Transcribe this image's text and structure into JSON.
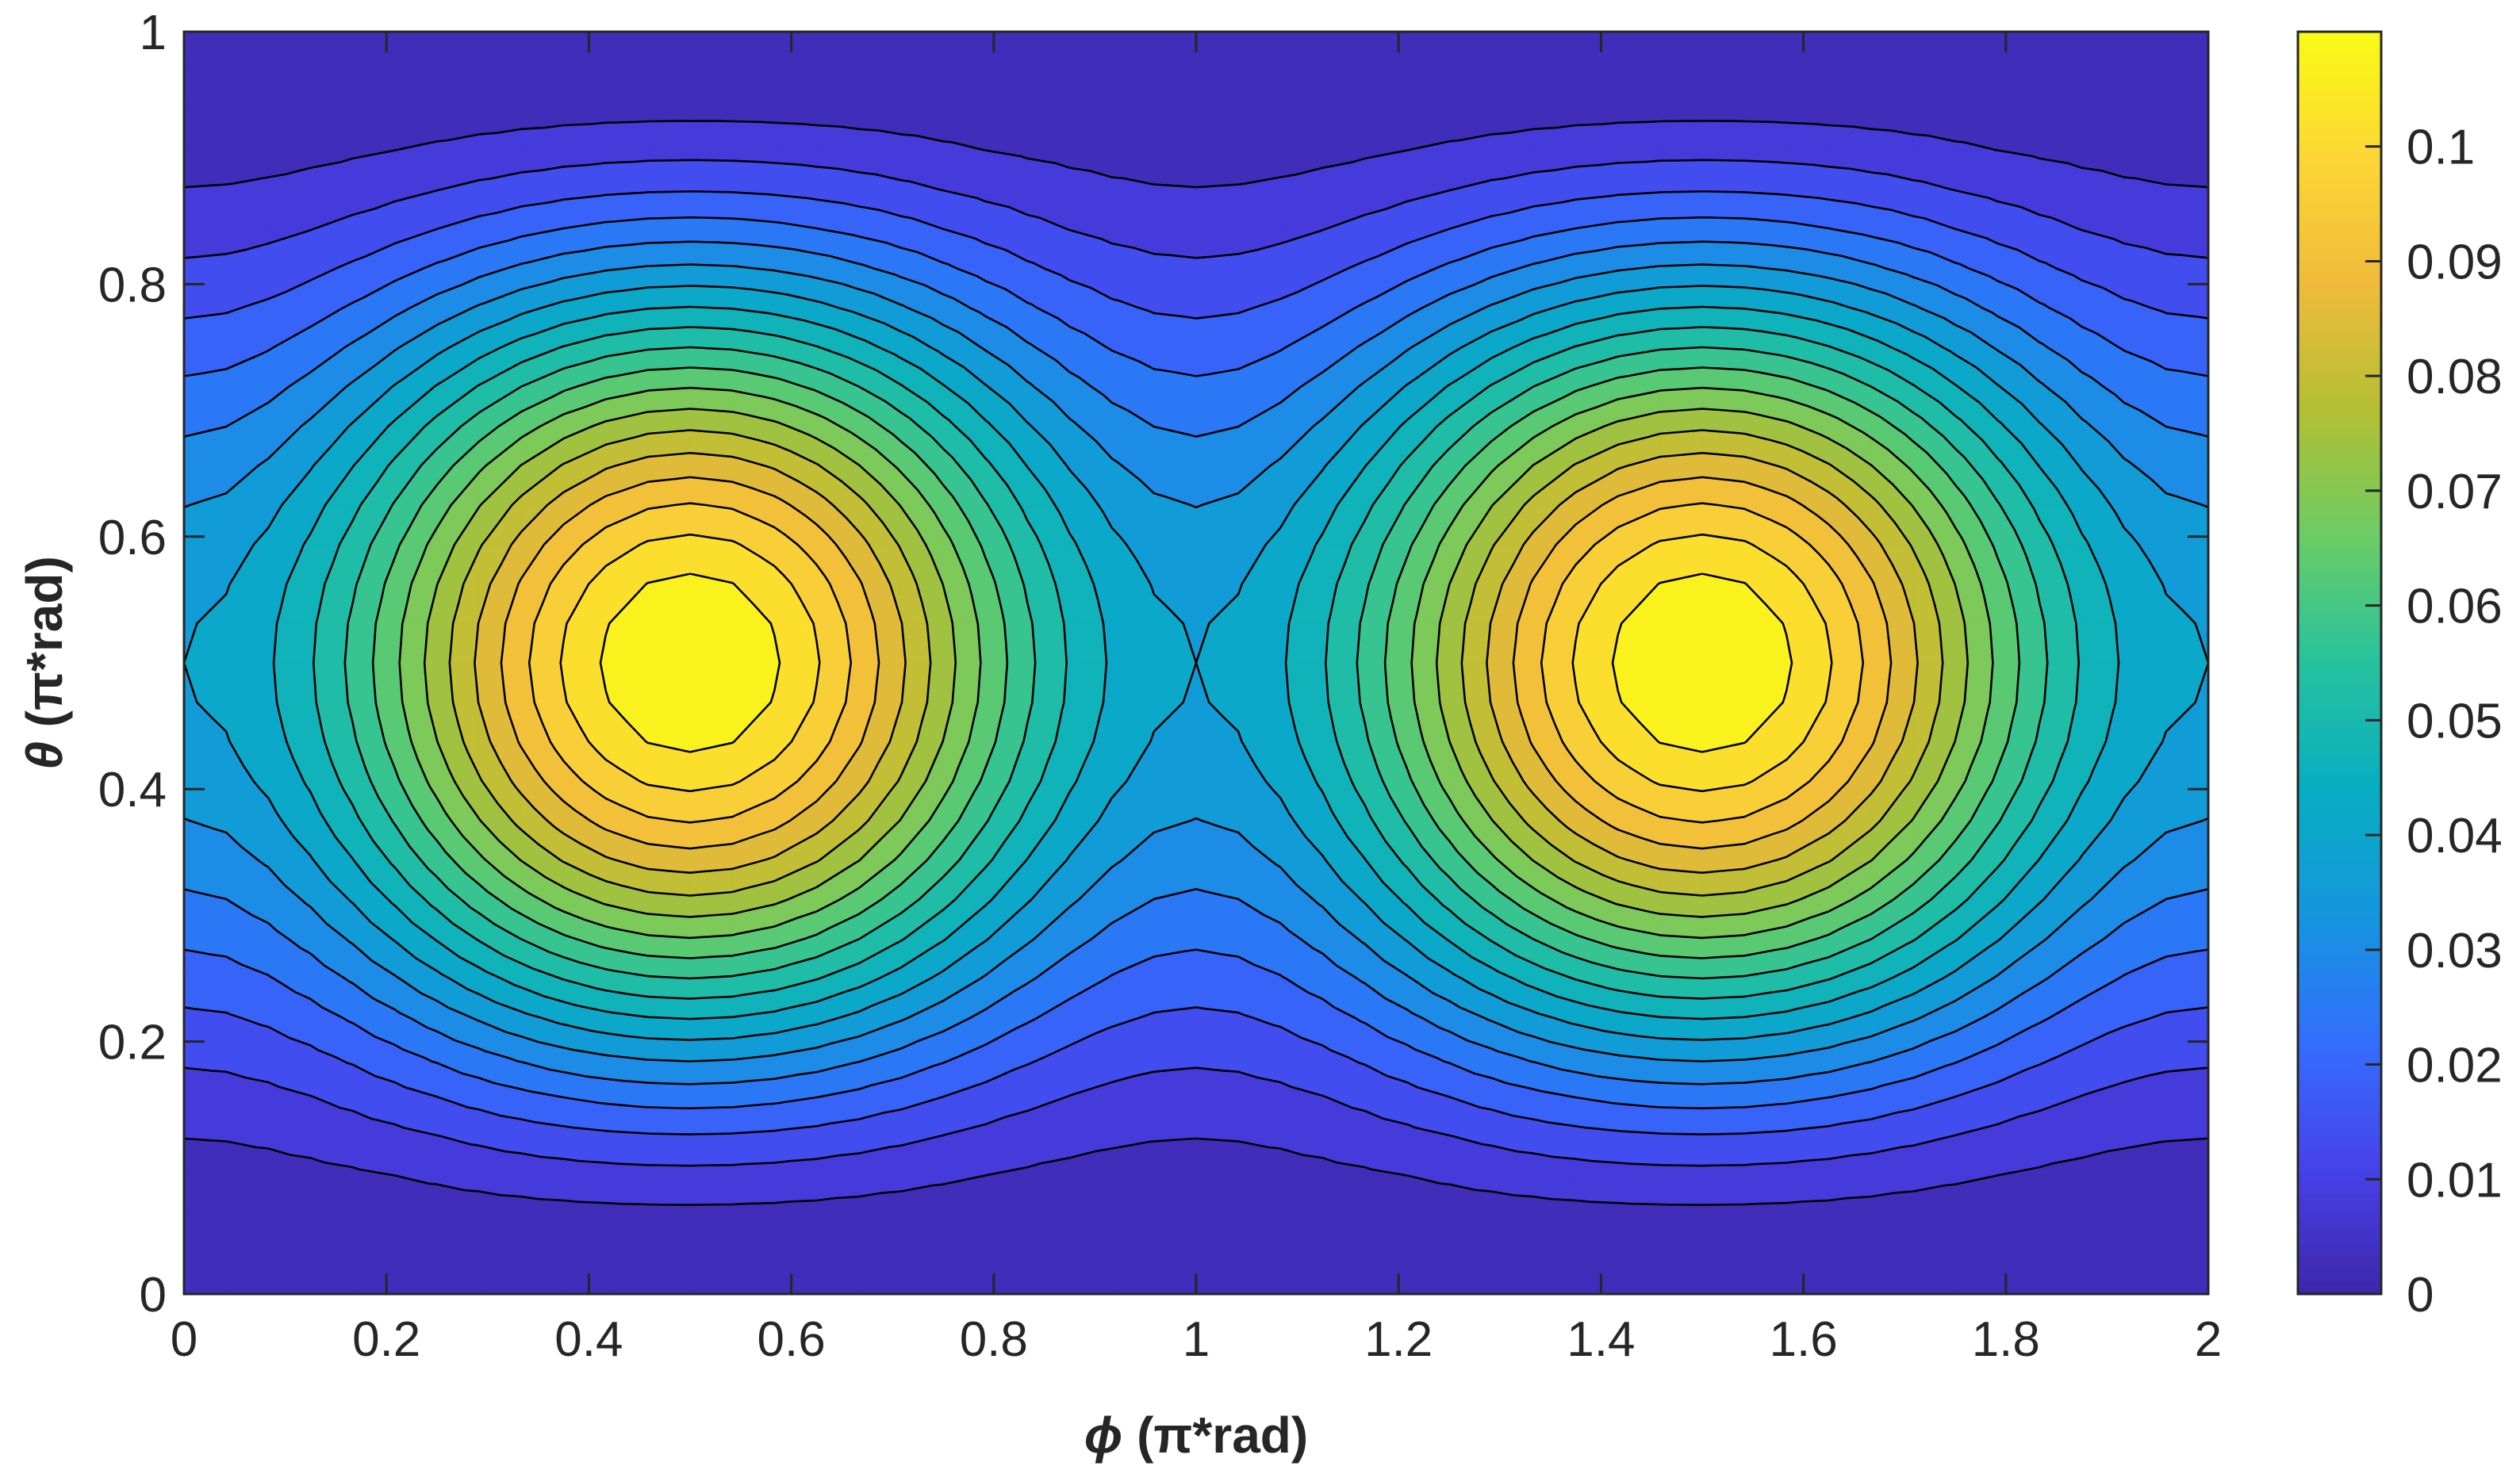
{
  "chart_data": {
    "type": "heatmap",
    "subtype": "filled-contour",
    "title": "",
    "xlabel_symbol": "ϕ",
    "xlabel_unit": "(π*rad)",
    "ylabel_symbol": "θ",
    "ylabel_unit": "(π*rad)",
    "xlim": [
      0,
      2
    ],
    "ylim": [
      0,
      1
    ],
    "x_ticks": [
      0,
      0.2,
      0.4,
      0.6,
      0.8,
      1,
      1.2,
      1.4,
      1.6,
      1.8,
      2
    ],
    "x_tick_labels": [
      "0",
      "0.2",
      "0.4",
      "0.6",
      "0.8",
      "1",
      "1.2",
      "1.4",
      "1.6",
      "1.8",
      "2"
    ],
    "y_ticks": [
      0,
      0.2,
      0.4,
      0.6,
      0.8,
      1
    ],
    "y_tick_labels": [
      "0",
      "0.2",
      "0.4",
      "0.6",
      "0.8",
      "1"
    ],
    "colorbar": {
      "clim": [
        0,
        0.11
      ],
      "ticks": [
        0,
        0.01,
        0.02,
        0.03,
        0.04,
        0.05,
        0.06,
        0.07,
        0.08,
        0.09,
        0.1
      ],
      "tick_labels": [
        "0",
        "0.01",
        "0.02",
        "0.03",
        "0.04",
        "0.05",
        "0.06",
        "0.07",
        "0.08",
        "0.09",
        "0.1"
      ],
      "colormap": "parula"
    },
    "grid": false,
    "contour_line_color": "#000000",
    "field": {
      "description": "f(θ,ϕ) = 0.11·sin²θ·(0.35 + 0.65·sin²ϕ)",
      "max_value": 0.11,
      "maxima_at": [
        [
          0.5,
          0.5
        ],
        [
          1.5,
          0.5
        ]
      ],
      "minima_at": [
        [
          0,
          0.5
        ],
        [
          1,
          0.5
        ],
        [
          2,
          0.5
        ]
      ],
      "contour_levels": 20
    }
  }
}
